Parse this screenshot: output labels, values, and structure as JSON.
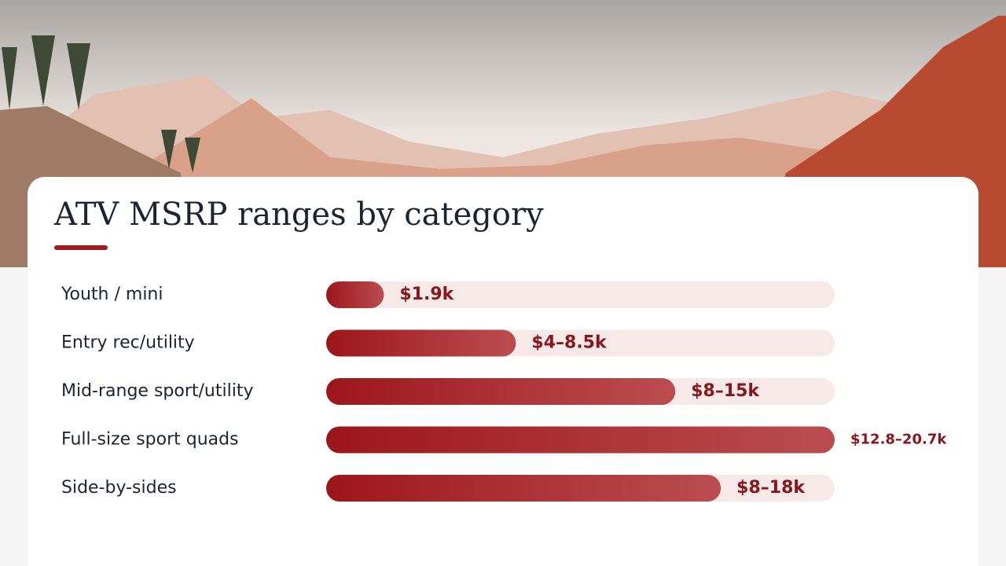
{
  "chart_data": {
    "type": "bar",
    "orientation": "horizontal",
    "title": "ATV MSRP ranges by category",
    "categories": [
      "Youth / mini",
      "Entry rec/utility",
      "Mid-range sport/utility",
      "Full-size sport quads",
      "Side-by-sides"
    ],
    "low": [
      1.9,
      4,
      8,
      12.8,
      8
    ],
    "high": [
      1.9,
      8.5,
      15,
      20.7,
      18
    ],
    "value_labels": [
      "$1.9k",
      "$4–8.5k",
      "$8–15k",
      "$12.8–20.7k",
      "$8–18k"
    ],
    "color": "#a01b20"
  }
}
